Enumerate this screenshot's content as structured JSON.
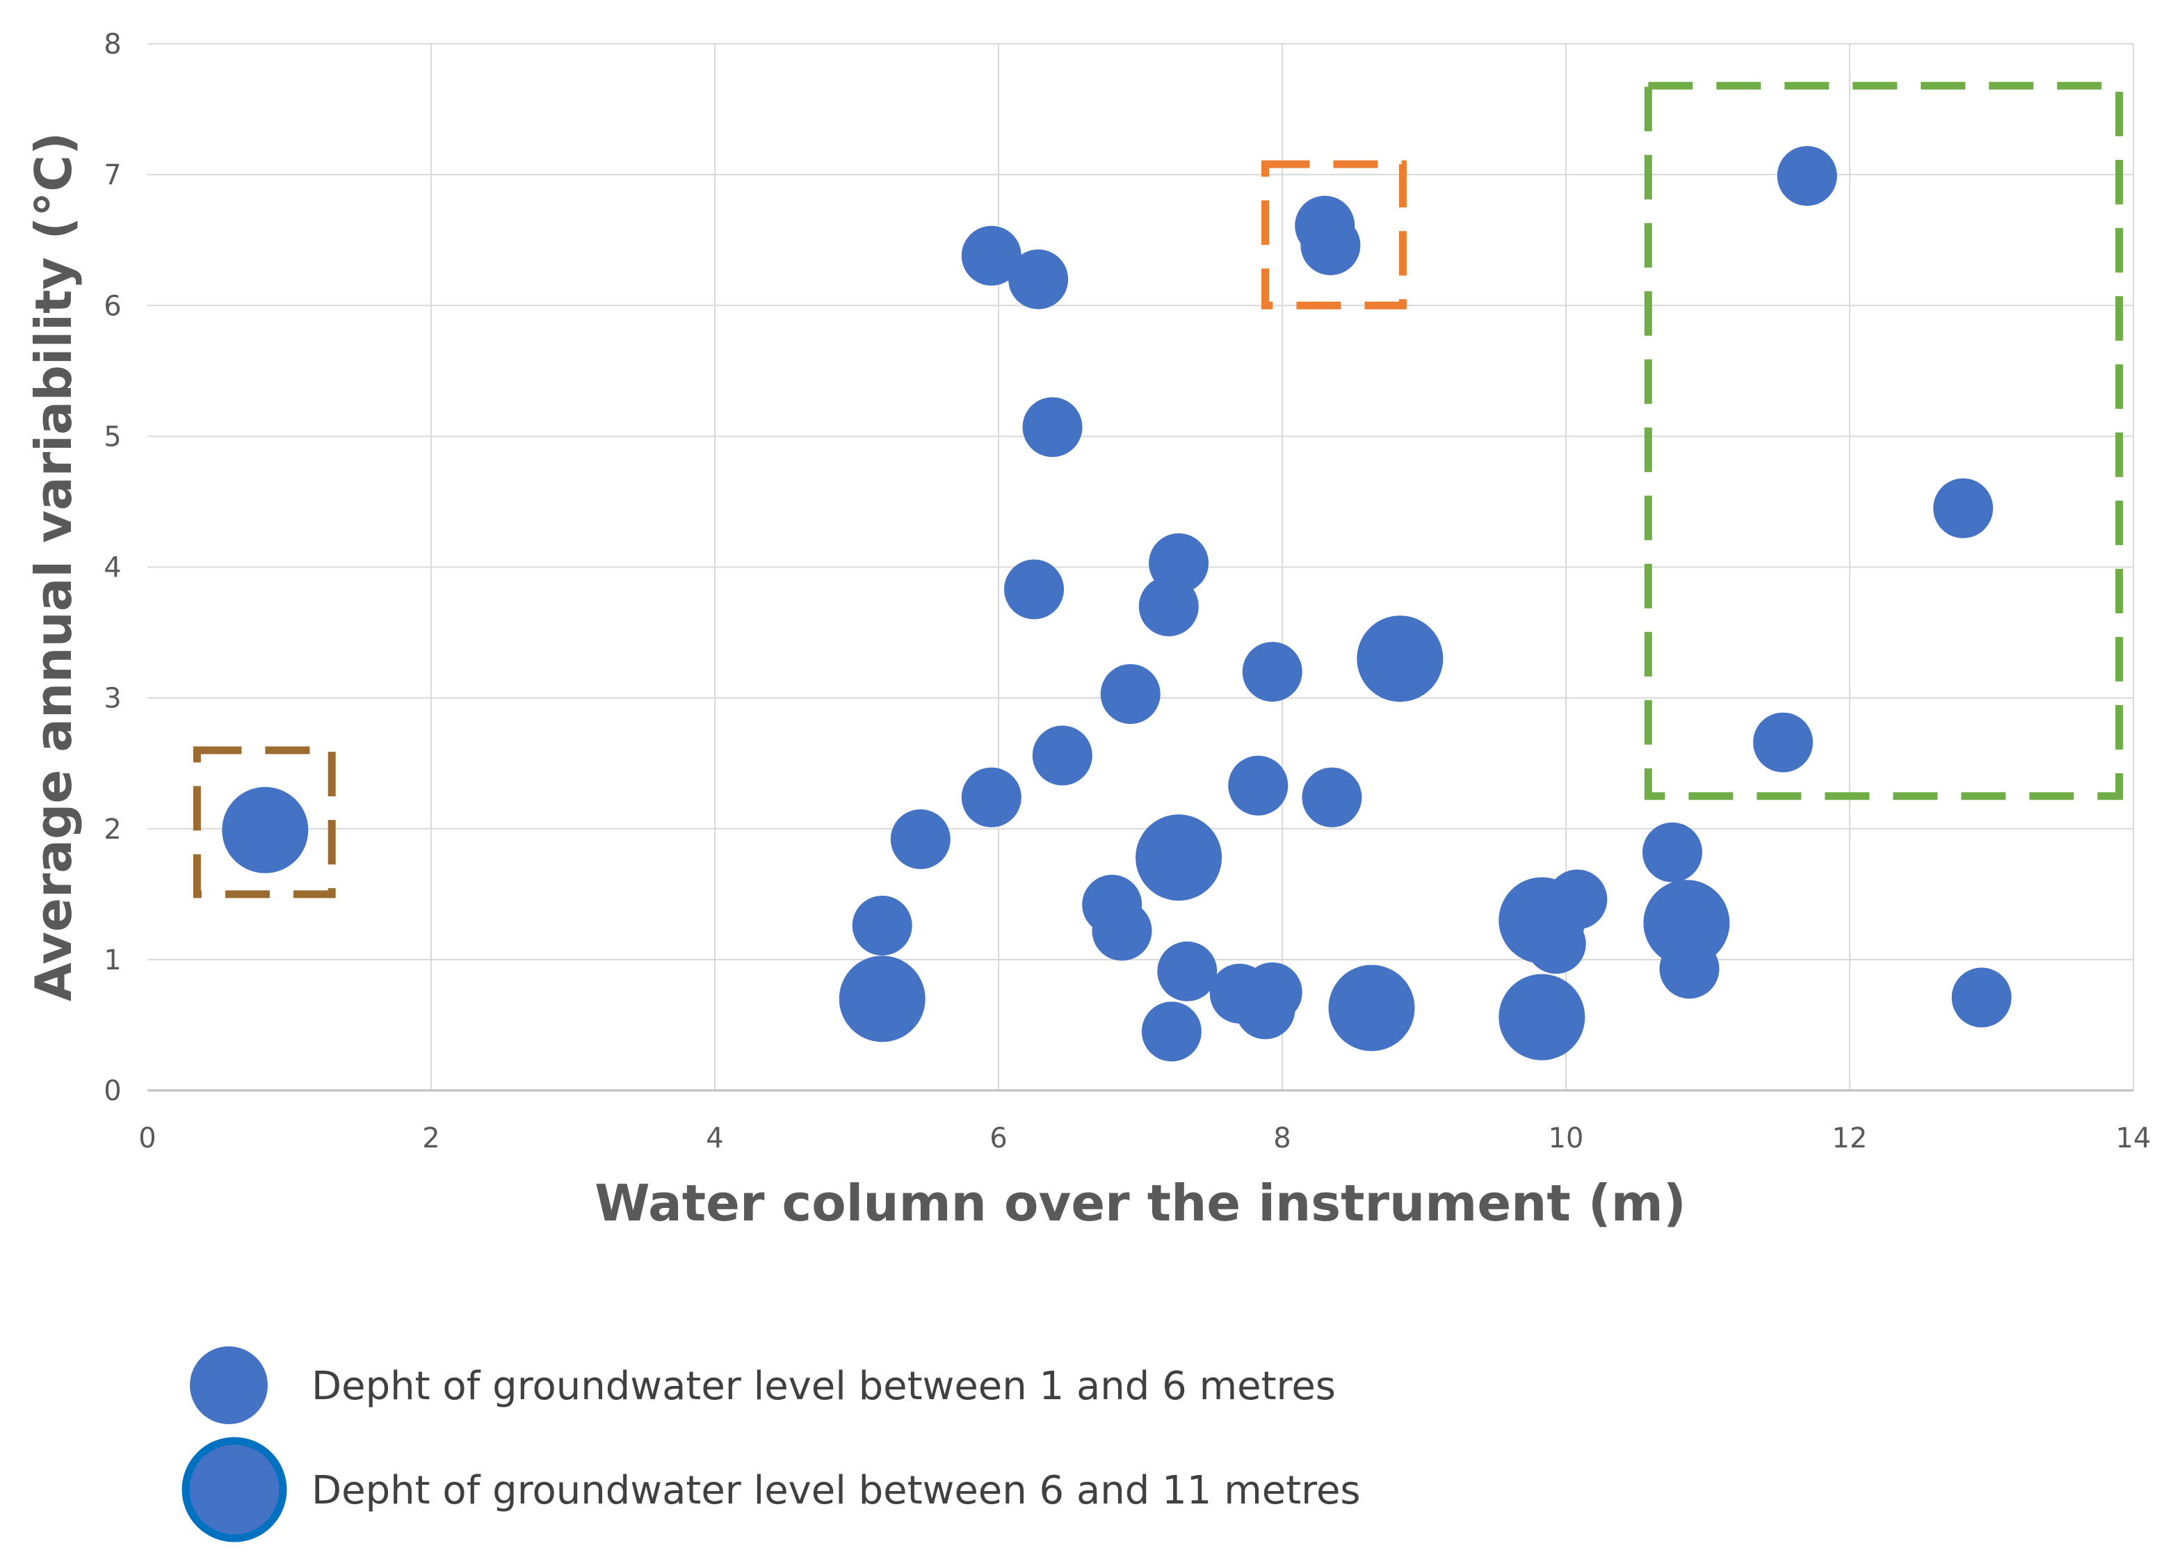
{
  "chart_data": {
    "type": "scatter",
    "title": "",
    "xlabel": "Water column over the instrument (m)",
    "ylabel": "Average annual variability (°C)",
    "xlim": [
      0,
      14
    ],
    "ylim": [
      0,
      8
    ],
    "x_ticks": [
      0,
      2,
      4,
      6,
      8,
      10,
      12,
      14
    ],
    "y_ticks": [
      0,
      1,
      2,
      3,
      4,
      5,
      6,
      7,
      8
    ],
    "grid": true,
    "legend_position": "bottom-left",
    "colors": {
      "marker": "#4472C4",
      "outline": "#0070C0",
      "grid": "#D9D9D9",
      "axis": "#BFBFBF"
    },
    "series": [
      {
        "name": "Depht of groundwater level between 1 and 6 metres",
        "marker": "small",
        "points": [
          {
            "x": 5.95,
            "y": 6.38
          },
          {
            "x": 6.28,
            "y": 6.2
          },
          {
            "x": 6.38,
            "y": 5.07
          },
          {
            "x": 6.25,
            "y": 3.83
          },
          {
            "x": 7.27,
            "y": 4.03
          },
          {
            "x": 7.2,
            "y": 3.7
          },
          {
            "x": 6.93,
            "y": 3.03
          },
          {
            "x": 7.93,
            "y": 3.2
          },
          {
            "x": 6.45,
            "y": 2.56
          },
          {
            "x": 5.95,
            "y": 2.24
          },
          {
            "x": 5.45,
            "y": 1.92
          },
          {
            "x": 5.18,
            "y": 1.26
          },
          {
            "x": 6.8,
            "y": 1.42
          },
          {
            "x": 6.87,
            "y": 1.22
          },
          {
            "x": 7.33,
            "y": 0.91
          },
          {
            "x": 7.22,
            "y": 0.45
          },
          {
            "x": 7.7,
            "y": 0.74
          },
          {
            "x": 7.88,
            "y": 0.62
          },
          {
            "x": 7.93,
            "y": 0.75
          },
          {
            "x": 7.83,
            "y": 2.33
          },
          {
            "x": 8.35,
            "y": 2.24
          },
          {
            "x": 8.3,
            "y": 6.61
          },
          {
            "x": 8.34,
            "y": 6.46
          },
          {
            "x": 10.08,
            "y": 1.46
          },
          {
            "x": 9.93,
            "y": 1.12
          },
          {
            "x": 10.75,
            "y": 1.82
          },
          {
            "x": 10.87,
            "y": 0.93
          },
          {
            "x": 11.7,
            "y": 6.99
          },
          {
            "x": 12.8,
            "y": 4.45
          },
          {
            "x": 11.53,
            "y": 2.66
          },
          {
            "x": 12.93,
            "y": 0.71
          }
        ]
      },
      {
        "name": "Depht of groundwater level between 6 and 11 metres",
        "marker": "large",
        "points": [
          {
            "x": 0.83,
            "y": 1.99
          },
          {
            "x": 5.18,
            "y": 0.7
          },
          {
            "x": 7.27,
            "y": 1.78
          },
          {
            "x": 8.83,
            "y": 3.3
          },
          {
            "x": 8.63,
            "y": 0.63
          },
          {
            "x": 9.83,
            "y": 1.3
          },
          {
            "x": 9.83,
            "y": 0.56
          },
          {
            "x": 10.85,
            "y": 1.28
          }
        ]
      }
    ],
    "highlight_boxes": [
      {
        "color": "#9C6B30",
        "x0": 0.35,
        "x1": 1.3,
        "y0": 1.5,
        "y1": 2.6
      },
      {
        "color": "#ED7D31",
        "x0": 7.88,
        "x1": 8.85,
        "y0": 6.0,
        "y1": 7.08
      },
      {
        "color": "#70AD47",
        "x0": 10.58,
        "x1": 13.9,
        "y0": 2.25,
        "y1": 7.68
      }
    ]
  }
}
